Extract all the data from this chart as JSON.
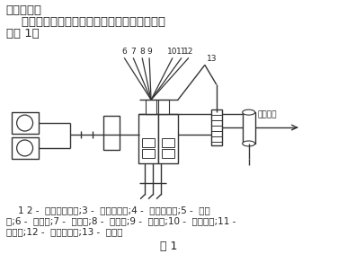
{
  "title_line1": "及工艺流程",
  "title_line2": "    传统的微热再生吸附型压缩空气净化系统配备",
  "title_line3": "如图 1：",
  "caption_line1": "    1 2 -  螺杆式空压机;3 -  气液分离器;4 -  除油过滤器;5 -  切找",
  "caption_line2": "阀;6 -  吸附塔;7 -  消音器;8 -  止回阀;9 -  调节阀;10 -  节流孔板;11 -",
  "caption_line3": "加热器;12 -  除尘过滤器;13 -  储气罐",
  "fig_label": "图 1",
  "label_yonghu": "至用户点",
  "bg_color": "#ffffff",
  "text_color": "#222222",
  "line_color": "#333333",
  "fontsize_title": 9.5,
  "fontsize_caption": 7.5,
  "fontsize_label": 6.5,
  "fontsize_figlabel": 9
}
